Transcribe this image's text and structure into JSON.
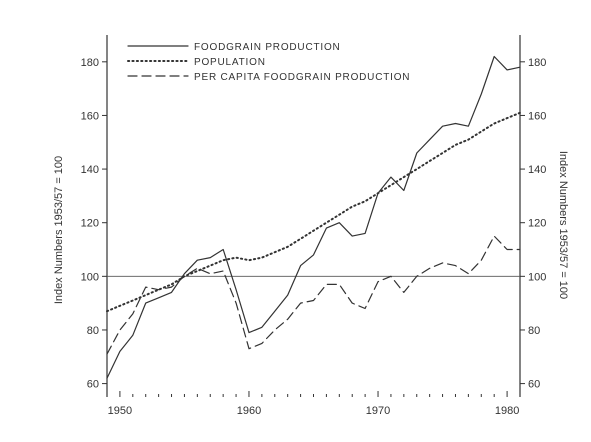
{
  "chart_data": {
    "type": "line",
    "title": "",
    "xlabel": "",
    "ylabel": "Index Numbers 1953/57 = 100",
    "ylabel_right": "Index Numbers 1953/57 = 100",
    "xlim": [
      1949,
      1981
    ],
    "ylim": [
      55,
      190
    ],
    "x_ticks": [
      1950,
      1960,
      1970,
      1980
    ],
    "x_tick_labels": [
      "1950",
      "1960",
      "1970",
      "1980"
    ],
    "y_ticks": [
      60,
      80,
      100,
      120,
      140,
      160,
      180
    ],
    "y_tick_labels": [
      "60",
      "80",
      "100",
      "120",
      "140",
      "160",
      "180"
    ],
    "reference_line": 100,
    "legend_position": "top-left",
    "series": [
      {
        "name": "FOODGRAIN PRODUCTION",
        "style": "solid",
        "x": [
          1949,
          1950,
          1951,
          1952,
          1953,
          1954,
          1955,
          1956,
          1957,
          1958,
          1959,
          1960,
          1961,
          1962,
          1963,
          1964,
          1965,
          1966,
          1967,
          1968,
          1969,
          1970,
          1971,
          1972,
          1973,
          1974,
          1975,
          1976,
          1977,
          1978,
          1979,
          1980,
          1981
        ],
        "values": [
          62,
          72,
          78,
          90,
          92,
          94,
          101,
          106,
          107,
          110,
          95,
          79,
          81,
          87,
          93,
          104,
          108,
          118,
          120,
          115,
          116,
          131,
          137,
          132,
          146,
          151,
          156,
          157,
          156,
          168,
          182,
          177,
          178
        ]
      },
      {
        "name": "POPULATION",
        "style": "dotted",
        "x": [
          1949,
          1950,
          1951,
          1952,
          1953,
          1954,
          1955,
          1956,
          1957,
          1958,
          1959,
          1960,
          1961,
          1962,
          1963,
          1964,
          1965,
          1966,
          1967,
          1968,
          1969,
          1970,
          1971,
          1972,
          1973,
          1974,
          1975,
          1976,
          1977,
          1978,
          1979,
          1980,
          1981
        ],
        "values": [
          87,
          89,
          91,
          93,
          95,
          97,
          100,
          102,
          104,
          106,
          107,
          106,
          107,
          109,
          111,
          114,
          117,
          120,
          123,
          126,
          128,
          131,
          134,
          137,
          140,
          143,
          146,
          149,
          151,
          154,
          157,
          159,
          161
        ]
      },
      {
        "name": "PER CAPITA FOODGRAIN PRODUCTION",
        "style": "dashed",
        "x": [
          1949,
          1950,
          1951,
          1952,
          1953,
          1954,
          1955,
          1956,
          1957,
          1958,
          1959,
          1960,
          1961,
          1962,
          1963,
          1964,
          1965,
          1966,
          1967,
          1968,
          1969,
          1970,
          1971,
          1972,
          1973,
          1974,
          1975,
          1976,
          1977,
          1978,
          1979,
          1980,
          1981
        ],
        "values": [
          71,
          80,
          86,
          96,
          95,
          96,
          100,
          103,
          101,
          102,
          90,
          73,
          75,
          80,
          84,
          90,
          91,
          97,
          97,
          90,
          88,
          98,
          100,
          94,
          100,
          103,
          105,
          104,
          101,
          106,
          115,
          110,
          110
        ]
      }
    ]
  }
}
